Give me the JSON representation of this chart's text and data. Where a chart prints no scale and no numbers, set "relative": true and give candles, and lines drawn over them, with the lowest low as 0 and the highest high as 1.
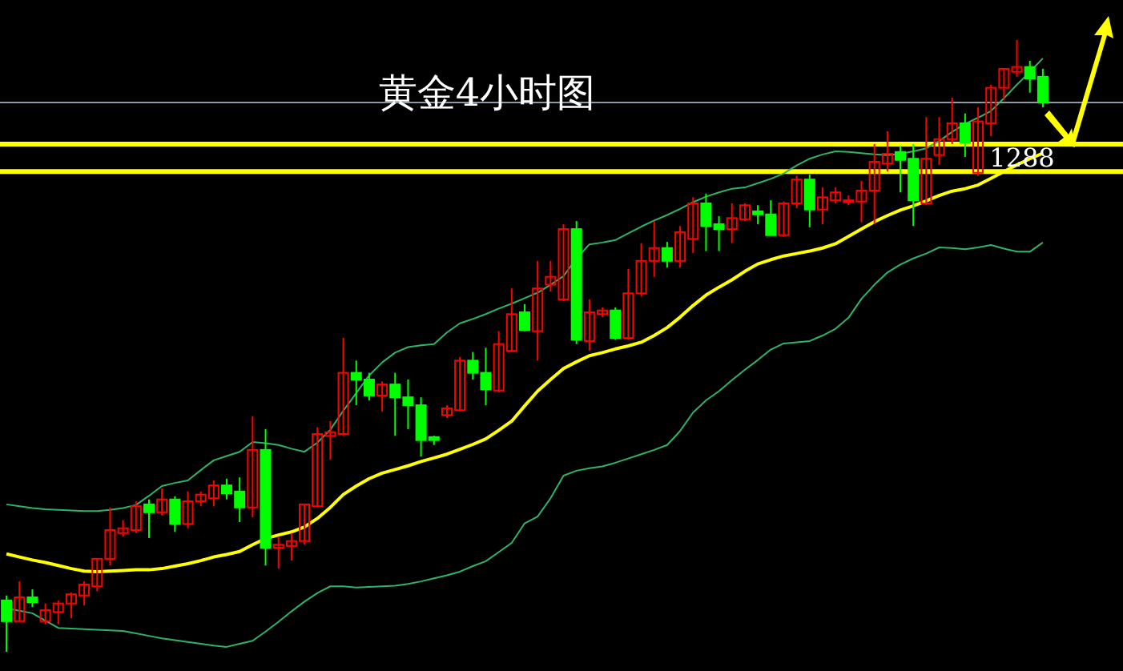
{
  "chart_data": {
    "type": "candlestick",
    "title": "黄金4小时图",
    "relative": true,
    "categories": [
      null,
      null,
      null,
      null,
      null,
      null,
      null,
      null,
      null,
      null,
      null,
      null,
      null,
      null,
      null,
      null,
      null,
      null,
      null,
      null,
      null,
      null,
      null,
      null,
      null,
      null,
      null,
      null,
      null,
      null,
      null,
      null,
      null,
      null,
      null,
      null,
      null,
      null,
      null,
      null,
      null,
      null,
      null,
      null,
      null,
      null,
      null,
      null,
      null,
      null,
      null,
      null,
      null,
      null,
      null,
      null,
      null,
      null,
      null,
      null,
      null,
      null,
      null,
      null,
      null,
      null,
      null,
      null,
      null,
      null,
      null,
      null,
      null,
      null,
      null,
      null,
      null,
      null,
      null,
      null,
      null
    ],
    "ohlc": [
      [
        0.084,
        0.092,
        0,
        0.05
      ],
      [
        0.05,
        0.115,
        0.05,
        0.089
      ],
      [
        0.089,
        0.102,
        0.073,
        0.081
      ],
      [
        0.05,
        0.079,
        0.045,
        0.068
      ],
      [
        0.065,
        0.084,
        0.045,
        0.079
      ],
      [
        0.079,
        0.097,
        0.055,
        0.094
      ],
      [
        0.092,
        0.115,
        0.076,
        0.11
      ],
      [
        0.107,
        0.152,
        0.099,
        0.152
      ],
      [
        0.152,
        0.236,
        0.141,
        0.199
      ],
      [
        0.194,
        0.215,
        0.188,
        0.202
      ],
      [
        0.199,
        0.246,
        0.194,
        0.238
      ],
      [
        0.241,
        0.249,
        0.186,
        0.228
      ],
      [
        0.228,
        0.267,
        0.223,
        0.249
      ],
      [
        0.249,
        0.254,
        0.196,
        0.209
      ],
      [
        0.209,
        0.262,
        0.202,
        0.246
      ],
      [
        0.246,
        0.262,
        0.238,
        0.257
      ],
      [
        0.251,
        0.28,
        0.238,
        0.272
      ],
      [
        0.272,
        0.283,
        0.249,
        0.259
      ],
      [
        0.262,
        0.285,
        0.212,
        0.236
      ],
      [
        0.236,
        0.385,
        0.22,
        0.33
      ],
      [
        0.33,
        0.364,
        0.141,
        0.17
      ],
      [
        0.17,
        0.188,
        0.136,
        0.175
      ],
      [
        0.173,
        0.194,
        0.149,
        0.181
      ],
      [
        0.181,
        0.241,
        0.175,
        0.241
      ],
      [
        0.238,
        0.367,
        0.236,
        0.356
      ],
      [
        0.353,
        0.377,
        0.314,
        0.359
      ],
      [
        0.356,
        0.513,
        0.353,
        0.456
      ],
      [
        0.456,
        0.476,
        0.403,
        0.445
      ],
      [
        0.445,
        0.456,
        0.411,
        0.419
      ],
      [
        0.419,
        0.442,
        0.393,
        0.437
      ],
      [
        0.437,
        0.456,
        0.353,
        0.416
      ],
      [
        0.416,
        0.445,
        0.364,
        0.403
      ],
      [
        0.403,
        0.416,
        0.319,
        0.346
      ],
      [
        0.351,
        0.353,
        0.338,
        0.346
      ],
      [
        0.387,
        0.403,
        0.382,
        0.398
      ],
      [
        0.395,
        0.482,
        0.393,
        0.476
      ],
      [
        0.476,
        0.49,
        0.445,
        0.456
      ],
      [
        0.456,
        0.497,
        0.403,
        0.429
      ],
      [
        0.427,
        0.524,
        0.424,
        0.503
      ],
      [
        0.492,
        0.594,
        0.49,
        0.552
      ],
      [
        0.555,
        0.568,
        0.524,
        0.526
      ],
      [
        0.524,
        0.639,
        0.476,
        0.594
      ],
      [
        0.6,
        0.639,
        0.589,
        0.613
      ],
      [
        0.576,
        0.699,
        0.573,
        0.691
      ],
      [
        0.691,
        0.704,
        0.503,
        0.51
      ],
      [
        0.508,
        0.576,
        0.492,
        0.555
      ],
      [
        0.552,
        0.563,
        0.547,
        0.558
      ],
      [
        0.558,
        0.563,
        0.51,
        0.513
      ],
      [
        0.513,
        0.626,
        0.51,
        0.586
      ],
      [
        0.586,
        0.668,
        0.581,
        0.639
      ],
      [
        0.639,
        0.704,
        0.613,
        0.66
      ],
      [
        0.66,
        0.67,
        0.628,
        0.639
      ],
      [
        0.639,
        0.696,
        0.628,
        0.686
      ],
      [
        0.675,
        0.743,
        0.652,
        0.733
      ],
      [
        0.733,
        0.749,
        0.655,
        0.696
      ],
      [
        0.699,
        0.712,
        0.655,
        0.691
      ],
      [
        0.691,
        0.733,
        0.668,
        0.709
      ],
      [
        0.707,
        0.733,
        0.704,
        0.73
      ],
      [
        0.72,
        0.73,
        0.699,
        0.715
      ],
      [
        0.715,
        0.738,
        0.681,
        0.681
      ],
      [
        0.681,
        0.736,
        0.678,
        0.733
      ],
      [
        0.733,
        0.778,
        0.725,
        0.772
      ],
      [
        0.772,
        0.78,
        0.694,
        0.723
      ],
      [
        0.723,
        0.759,
        0.699,
        0.743
      ],
      [
        0.738,
        0.759,
        0.733,
        0.751
      ],
      [
        0.736,
        0.746,
        0.73,
        0.738
      ],
      [
        0.736,
        0.77,
        0.702,
        0.754
      ],
      [
        0.754,
        0.83,
        0.699,
        0.801
      ],
      [
        0.798,
        0.851,
        0.785,
        0.814
      ],
      [
        0.817,
        0.827,
        0.751,
        0.804
      ],
      [
        0.806,
        0.83,
        0.696,
        0.738
      ],
      [
        0.733,
        0.874,
        0.73,
        0.806
      ],
      [
        0.812,
        0.874,
        0.796,
        0.838
      ],
      [
        0.838,
        0.906,
        0.83,
        0.864
      ],
      [
        0.864,
        0.88,
        0.809,
        0.832
      ],
      [
        0.783,
        0.89,
        0.778,
        0.867
      ],
      [
        0.864,
        0.927,
        0.843,
        0.922
      ],
      [
        0.922,
        0.953,
        0.901,
        0.953
      ],
      [
        0.948,
        1,
        0.94,
        0.956
      ],
      [
        0.956,
        0.966,
        0.914,
        0.937
      ],
      [
        0.94,
        0.953,
        0.89,
        0.898
      ]
    ],
    "series": [
      {
        "type": "line",
        "color": "#2fb36a",
        "values": [
          0.241,
          0.238,
          0.235,
          0.233,
          0.232,
          0.231,
          0.23,
          0.23,
          0.232,
          0.235,
          0.24,
          0.255,
          0.271,
          0.276,
          0.28,
          0.297,
          0.313,
          0.32,
          0.327,
          0.343,
          0.341,
          0.338,
          0.332,
          0.327,
          0.342,
          0.363,
          0.394,
          0.423,
          0.452,
          0.473,
          0.489,
          0.498,
          0.501,
          0.503,
          0.522,
          0.537,
          0.544,
          0.552,
          0.561,
          0.569,
          0.578,
          0.587,
          0.6,
          0.614,
          0.643,
          0.666,
          0.669,
          0.673,
          0.684,
          0.695,
          0.705,
          0.714,
          0.724,
          0.735,
          0.744,
          0.751,
          0.757,
          0.759,
          0.766,
          0.773,
          0.782,
          0.795,
          0.806,
          0.813,
          0.818,
          0.817,
          0.815,
          0.813,
          0.812,
          0.814,
          0.818,
          0.823,
          0.835,
          0.85,
          0.863,
          0.873,
          0.884,
          0.905,
          0.927,
          0.948,
          0.97
        ]
      },
      {
        "type": "line",
        "color": "#ffff00",
        "values": [
          0.16,
          0.155,
          0.15,
          0.146,
          0.141,
          0.136,
          0.132,
          0.131,
          0.132,
          0.133,
          0.134,
          0.134,
          0.136,
          0.14,
          0.144,
          0.149,
          0.155,
          0.159,
          0.164,
          0.175,
          0.185,
          0.191,
          0.196,
          0.204,
          0.218,
          0.236,
          0.257,
          0.271,
          0.283,
          0.292,
          0.298,
          0.304,
          0.311,
          0.317,
          0.323,
          0.331,
          0.339,
          0.348,
          0.362,
          0.377,
          0.402,
          0.426,
          0.445,
          0.463,
          0.474,
          0.484,
          0.489,
          0.495,
          0.5,
          0.506,
          0.517,
          0.53,
          0.547,
          0.566,
          0.583,
          0.596,
          0.608,
          0.622,
          0.634,
          0.641,
          0.647,
          0.651,
          0.655,
          0.66,
          0.667,
          0.679,
          0.691,
          0.703,
          0.713,
          0.722,
          0.729,
          0.737,
          0.746,
          0.753,
          0.757,
          0.763,
          0.774,
          0.785,
          0.796,
          0.806,
          0.815
        ]
      },
      {
        "type": "line",
        "color": "#2fb36a",
        "values": [
          0.071,
          0.067,
          0.063,
          0.051,
          0.039,
          0.038,
          0.037,
          0.036,
          0.035,
          0.034,
          0.03,
          0.026,
          0.022,
          0.019,
          0.016,
          0.013,
          0.01,
          0.008,
          0.013,
          0.018,
          0.033,
          0.049,
          0.066,
          0.082,
          0.096,
          0.107,
          0.107,
          0.105,
          0.106,
          0.107,
          0.108,
          0.111,
          0.115,
          0.12,
          0.125,
          0.131,
          0.14,
          0.148,
          0.163,
          0.178,
          0.21,
          0.221,
          0.251,
          0.288,
          0.296,
          0.3,
          0.303,
          0.309,
          0.316,
          0.323,
          0.33,
          0.338,
          0.361,
          0.391,
          0.411,
          0.426,
          0.444,
          0.461,
          0.477,
          0.494,
          0.504,
          0.506,
          0.508,
          0.517,
          0.528,
          0.546,
          0.577,
          0.6,
          0.62,
          0.633,
          0.643,
          0.651,
          0.661,
          0.66,
          0.658,
          0.661,
          0.665,
          0.659,
          0.654,
          0.654,
          0.669
        ]
      }
    ],
    "ref_lines": [
      {
        "axis": "y",
        "value": 0.898,
        "color": "#8a9aa8"
      },
      {
        "axis": "y",
        "value": 0.83,
        "color": "#ffff00"
      },
      {
        "axis": "y",
        "value": 0.785,
        "color": "#ffff00"
      }
    ],
    "annotations": [
      "1288"
    ]
  }
}
